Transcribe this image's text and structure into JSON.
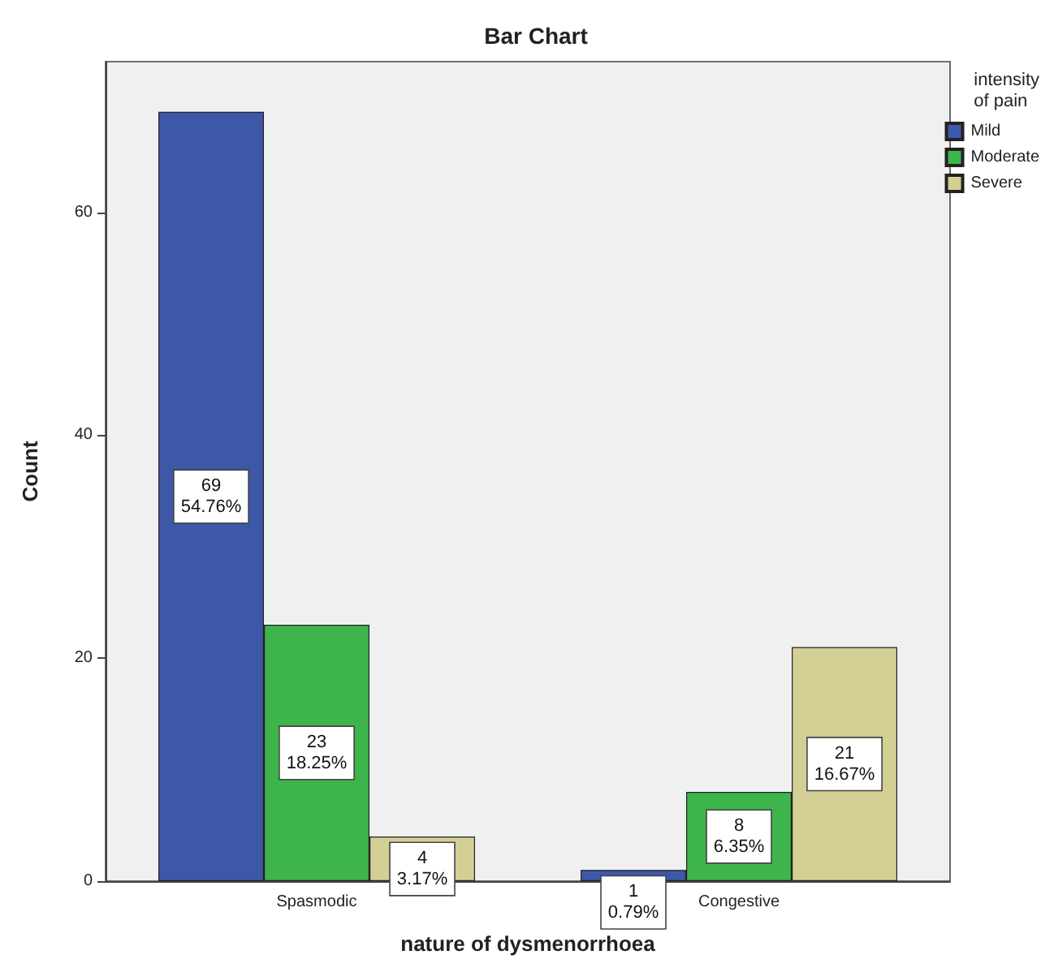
{
  "chart_data": {
    "type": "bar",
    "title": "Bar Chart",
    "xlabel": "nature of dysmenorrhoea",
    "ylabel": "Count",
    "legend_title": "intensity of pain",
    "categories": [
      "Spasmodic",
      "Congestive"
    ],
    "series": [
      {
        "name": "Mild",
        "color": "#3e58a8",
        "values": [
          69,
          1
        ],
        "value_labels": [
          "69\n54.76%",
          "1\n0.79%"
        ]
      },
      {
        "name": "Moderate",
        "color": "#3db54a",
        "values": [
          23,
          8
        ],
        "value_labels": [
          "23\n18.25%",
          "8\n6.35%"
        ]
      },
      {
        "name": "Severe",
        "color": "#d4cf95",
        "values": [
          4,
          21
        ],
        "value_labels": [
          "4\n3.17%",
          "21\n16.67%"
        ]
      }
    ],
    "ylim": [
      0,
      73.5
    ],
    "yticks": [
      0,
      20,
      40,
      60
    ],
    "grid": false,
    "legend": "right"
  }
}
